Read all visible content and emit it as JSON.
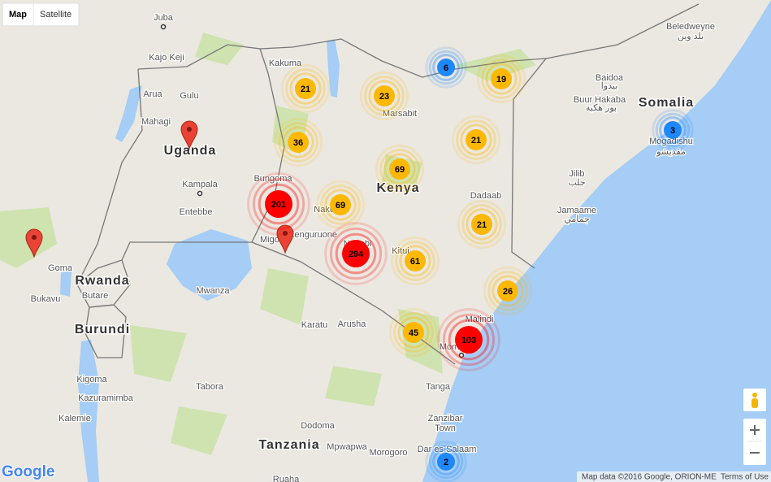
{
  "map_type_control": {
    "map": "Map",
    "satellite": "Satellite"
  },
  "countries": [
    "Uganda",
    "Kenya",
    "Somalia",
    "Rwanda",
    "Burundi",
    "Tanzania"
  ],
  "places": [
    "Juba",
    "Kajo Keji",
    "Arua",
    "Gulu",
    "Mahagi",
    "Kampala",
    "Entebbe",
    "Bungoma",
    "Nakuru",
    "Kakuma",
    "Marsabit",
    "Baidoa",
    "بيدوا",
    "Beledweyne",
    "بلد وين",
    "Buur Hakaba",
    "بور هكبة",
    "Mogadishu",
    "مقديشو",
    "Jilib",
    "جلب",
    "Dadaab",
    "Jamaame",
    "جمامي",
    "Kitui",
    "Nairobi",
    "Kenguruone",
    "Migori",
    "Goma",
    "Butare",
    "Bukavu",
    "Mwanza",
    "Karatu",
    "Arusha",
    "Malindi",
    "Mombasa",
    "Tanga",
    "Kigoma",
    "Kazuramimba",
    "Tabora",
    "Kalemie",
    "Zanzibar",
    "Town",
    "Dodoma",
    "Mpwapwa",
    "Morogoro",
    "Dar es Salaam",
    "Ruaha"
  ],
  "clusters": [
    21,
    23,
    6,
    19,
    36,
    21,
    69,
    201,
    69,
    21,
    294,
    61,
    26,
    45,
    103,
    3,
    2
  ],
  "logo": "Google",
  "attribution": "Map data ©2016 Google, ORION-ME",
  "terms": "Terms of Use"
}
